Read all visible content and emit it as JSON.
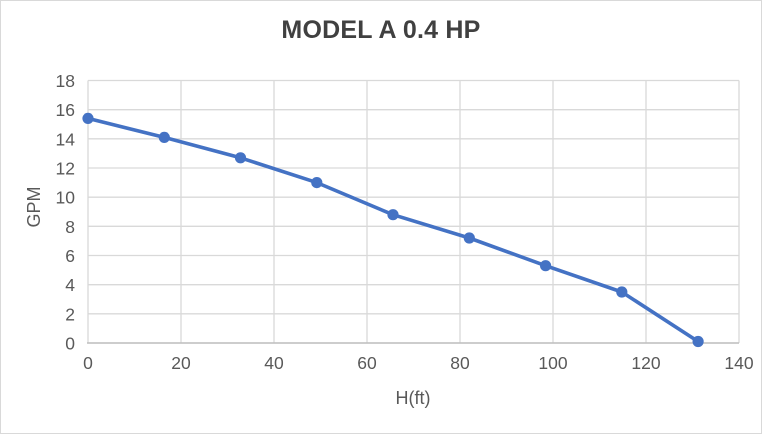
{
  "chart_data": {
    "type": "line",
    "title": "MODEL A 0.4 HP",
    "xlabel": "H(ft)",
    "ylabel": "GPM",
    "x": [
      0,
      16.4,
      32.8,
      49.2,
      65.6,
      82,
      98.4,
      114.8,
      131.2
    ],
    "y": [
      15.4,
      14.1,
      12.7,
      11.0,
      8.8,
      7.2,
      5.3,
      3.5,
      0.1
    ],
    "xlim": [
      0,
      140
    ],
    "ylim": [
      0,
      18
    ],
    "xtick_step": 20,
    "ytick_step": 2,
    "grid": true,
    "legend": false,
    "colors": {
      "line": "#4472C4",
      "marker": "#4472C4",
      "grid": "#D9D9D9",
      "axis": "#BFBFBF",
      "title": "#404040",
      "tick_text": "#595959",
      "border": "#D9D9D9",
      "background": "#FFFFFF"
    }
  }
}
